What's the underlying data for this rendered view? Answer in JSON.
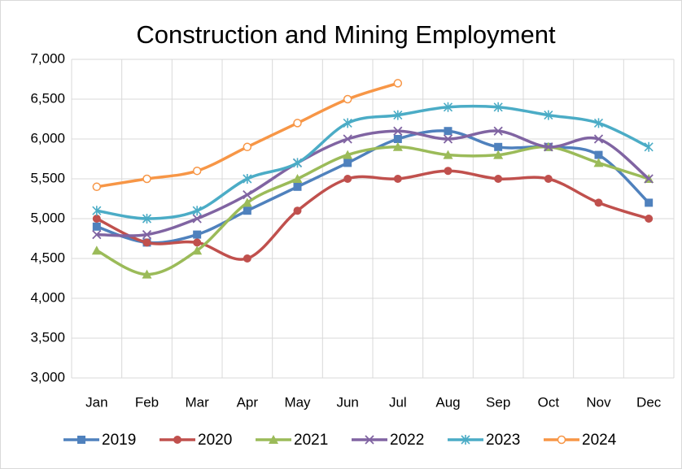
{
  "chart_data": {
    "type": "line",
    "title": "Construction and Mining Employment",
    "categories": [
      "Jan",
      "Feb",
      "Mar",
      "Apr",
      "May",
      "Jun",
      "Jul",
      "Aug",
      "Sep",
      "Oct",
      "Nov",
      "Dec"
    ],
    "series": [
      {
        "name": "2019",
        "color": "#4f81bd",
        "marker": "square",
        "values": [
          4900,
          4700,
          4800,
          5100,
          5400,
          5700,
          6000,
          6100,
          5900,
          5900,
          5800,
          5200
        ]
      },
      {
        "name": "2020",
        "color": "#c0504d",
        "marker": "circle",
        "values": [
          5000,
          4700,
          4700,
          4500,
          5100,
          5500,
          5500,
          5600,
          5500,
          5500,
          5200,
          5000
        ]
      },
      {
        "name": "2021",
        "color": "#9bbb59",
        "marker": "triangle",
        "values": [
          4600,
          4300,
          4600,
          5200,
          5500,
          5800,
          5900,
          5800,
          5800,
          5900,
          5700,
          5500
        ]
      },
      {
        "name": "2022",
        "color": "#8064a2",
        "marker": "x",
        "values": [
          4800,
          4800,
          5000,
          5300,
          5700,
          6000,
          6100,
          6000,
          6100,
          5900,
          6000,
          5500
        ]
      },
      {
        "name": "2023",
        "color": "#4bacc6",
        "marker": "asterisk",
        "values": [
          5100,
          5000,
          5100,
          5500,
          5700,
          6200,
          6300,
          6400,
          6400,
          6300,
          6200,
          5900
        ]
      },
      {
        "name": "2024",
        "color": "#f79646",
        "marker": "open-circle",
        "values": [
          5400,
          5500,
          5600,
          5900,
          6200,
          6500,
          6700,
          null,
          null,
          null,
          null,
          null
        ]
      }
    ],
    "ylim": [
      3000,
      7000
    ],
    "yticks": [
      {
        "value": 3000,
        "label": "3,000"
      },
      {
        "value": 3500,
        "label": "3,500"
      },
      {
        "value": 4000,
        "label": "4,000"
      },
      {
        "value": 4500,
        "label": "4,500"
      },
      {
        "value": 5000,
        "label": "5,000"
      },
      {
        "value": 5500,
        "label": "5,500"
      },
      {
        "value": 6000,
        "label": "6,000"
      },
      {
        "value": 6500,
        "label": "6,500"
      },
      {
        "value": 7000,
        "label": "7,000"
      }
    ],
    "grid": true,
    "legend": "bottom"
  }
}
